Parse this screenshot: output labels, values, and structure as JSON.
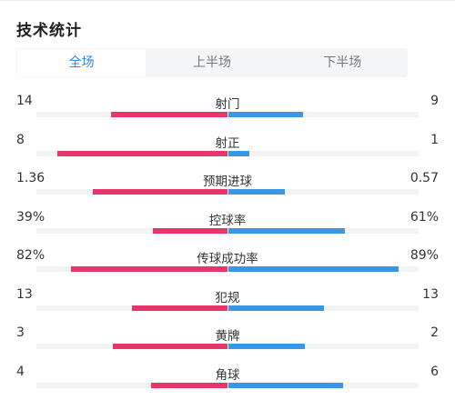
{
  "title": "技术统计",
  "tabs": [
    {
      "label": "全场",
      "active": true
    },
    {
      "label": "上半场",
      "active": false
    },
    {
      "label": "下半场",
      "active": false
    }
  ],
  "colors": {
    "home": "#e8356c",
    "away": "#3b97e6",
    "accent": "#2f86e8"
  },
  "stats": [
    {
      "label": "射门",
      "home": "14",
      "away": "9",
      "home_share": 0.609,
      "away_share": 0.391
    },
    {
      "label": "射正",
      "home": "8",
      "away": "1",
      "home_share": 0.889,
      "away_share": 0.111
    },
    {
      "label": "预期进球",
      "home": "1.36",
      "away": "0.57",
      "home_share": 0.705,
      "away_share": 0.295
    },
    {
      "label": "控球率",
      "home": "39%",
      "away": "61%",
      "home_share": 0.39,
      "away_share": 0.61
    },
    {
      "label": "传球成功率",
      "home": "82%",
      "away": "89%",
      "home_share": 0.82,
      "away_share": 0.89
    },
    {
      "label": "犯规",
      "home": "13",
      "away": "13",
      "home_share": 0.5,
      "away_share": 0.5
    },
    {
      "label": "黄牌",
      "home": "3",
      "away": "2",
      "home_share": 0.6,
      "away_share": 0.4
    },
    {
      "label": "角球",
      "home": "4",
      "away": "6",
      "home_share": 0.4,
      "away_share": 0.6
    }
  ]
}
